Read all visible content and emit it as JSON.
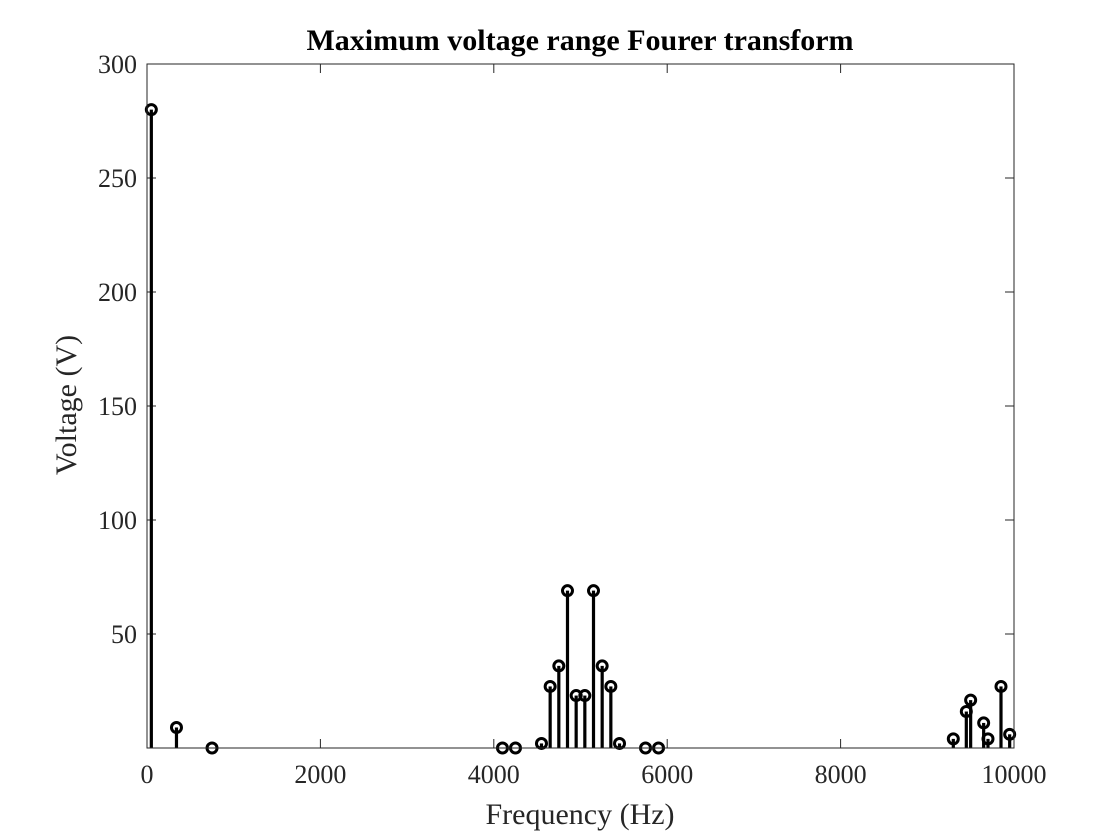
{
  "chart_data": {
    "type": "stem",
    "title": "Maximum voltage range Fourer transform",
    "xlabel": "Frequency (Hz)",
    "ylabel": "Voltage (V)",
    "xlim": [
      0,
      10000
    ],
    "ylim": [
      0,
      300
    ],
    "xticks": [
      0,
      2000,
      4000,
      6000,
      8000,
      10000
    ],
    "yticks": [
      50,
      100,
      150,
      200,
      250,
      300
    ],
    "xtick_labels": [
      "0",
      "2000",
      "4000",
      "6000",
      "8000",
      "10000"
    ],
    "ytick_labels": [
      "50",
      "100",
      "150",
      "200",
      "250",
      "300"
    ],
    "grid": false,
    "box": true,
    "marker": "circle",
    "color": "#000000",
    "points": [
      {
        "x": 50,
        "y": 280
      },
      {
        "x": 340,
        "y": 9
      },
      {
        "x": 750,
        "y": 0
      },
      {
        "x": 4100,
        "y": 0
      },
      {
        "x": 4250,
        "y": 0
      },
      {
        "x": 4550,
        "y": 2
      },
      {
        "x": 4650,
        "y": 27
      },
      {
        "x": 4750,
        "y": 36
      },
      {
        "x": 4850,
        "y": 69
      },
      {
        "x": 4950,
        "y": 23
      },
      {
        "x": 5050,
        "y": 23
      },
      {
        "x": 5150,
        "y": 69
      },
      {
        "x": 5250,
        "y": 36
      },
      {
        "x": 5350,
        "y": 27
      },
      {
        "x": 5450,
        "y": 2
      },
      {
        "x": 5750,
        "y": 0
      },
      {
        "x": 5900,
        "y": 0
      },
      {
        "x": 9300,
        "y": 4
      },
      {
        "x": 9450,
        "y": 16
      },
      {
        "x": 9500,
        "y": 21
      },
      {
        "x": 9650,
        "y": 11
      },
      {
        "x": 9700,
        "y": 4
      },
      {
        "x": 9850,
        "y": 27
      },
      {
        "x": 9950,
        "y": 6
      }
    ]
  }
}
